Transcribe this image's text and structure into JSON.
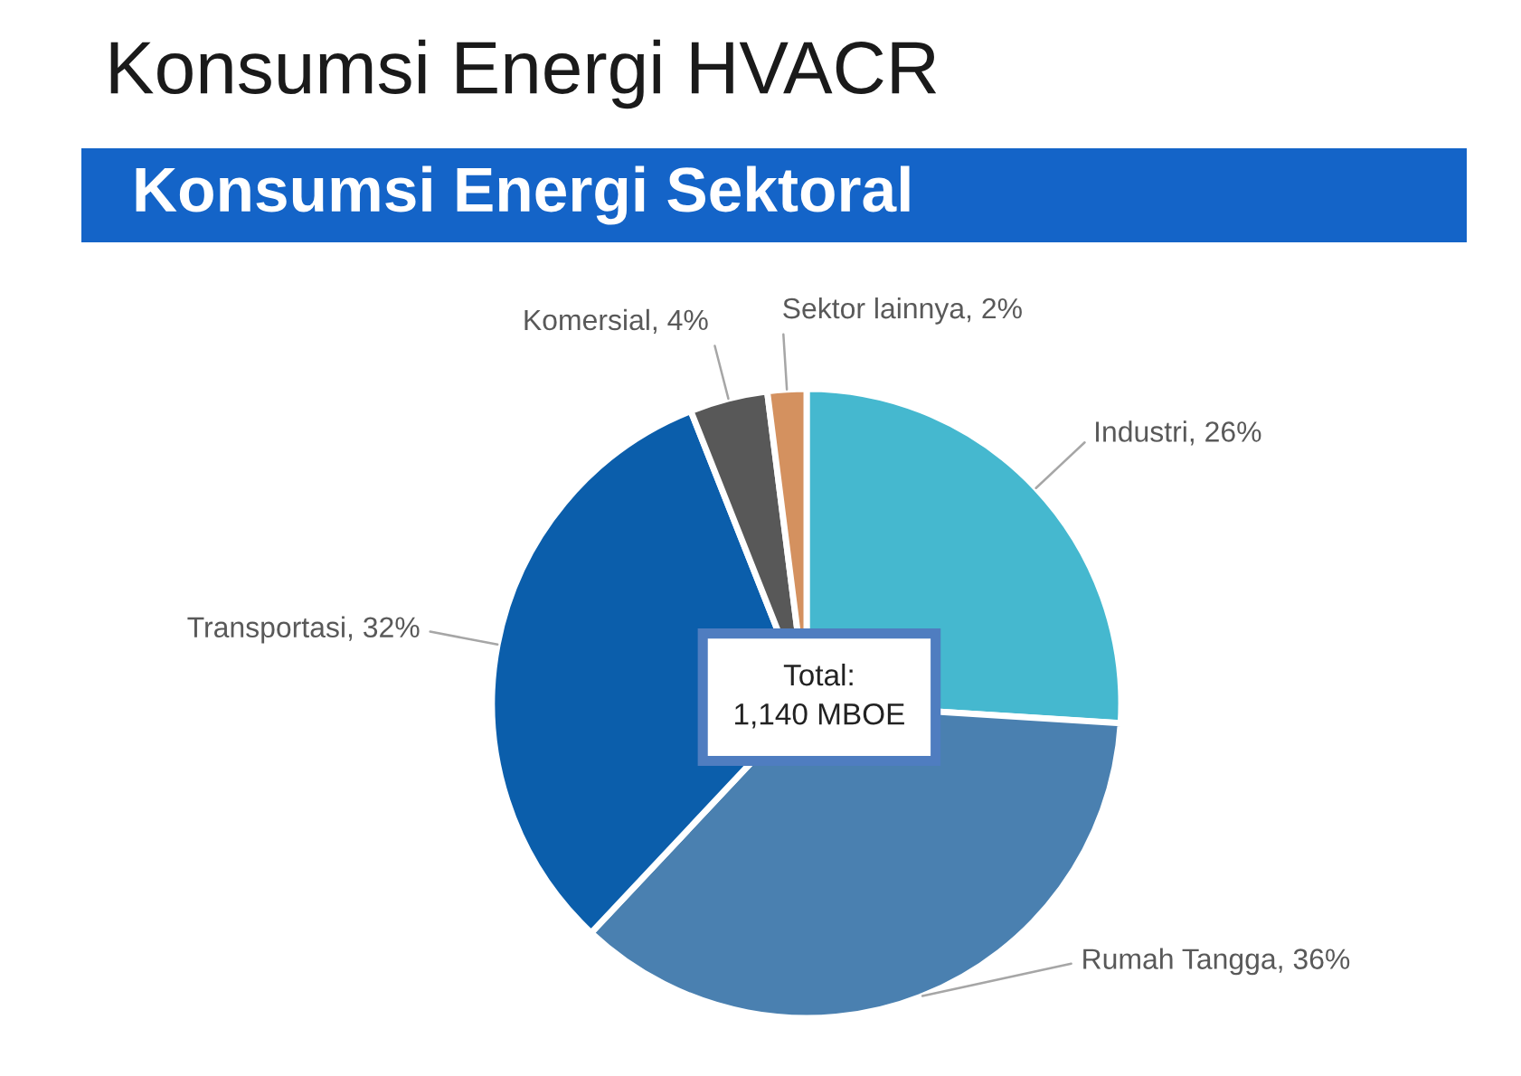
{
  "chart_data": {
    "type": "pie",
    "title": "Konsumsi Energi HVACR",
    "subtitle": "Konsumsi Energi Sektoral",
    "categories": [
      "Industri",
      "Rumah Tangga",
      "Transportasi",
      "Komersial",
      "Sektor lainnya"
    ],
    "values": [
      26,
      36,
      32,
      4,
      2
    ],
    "colors": [
      "#45b8cf",
      "#4a80b0",
      "#0b5eab",
      "#585858",
      "#d4915f"
    ],
    "value_labels": [
      "26%",
      "36%",
      "32%",
      "4%",
      "2%"
    ],
    "annotations": [
      "Total:\n1,140 MBOE"
    ]
  }
}
